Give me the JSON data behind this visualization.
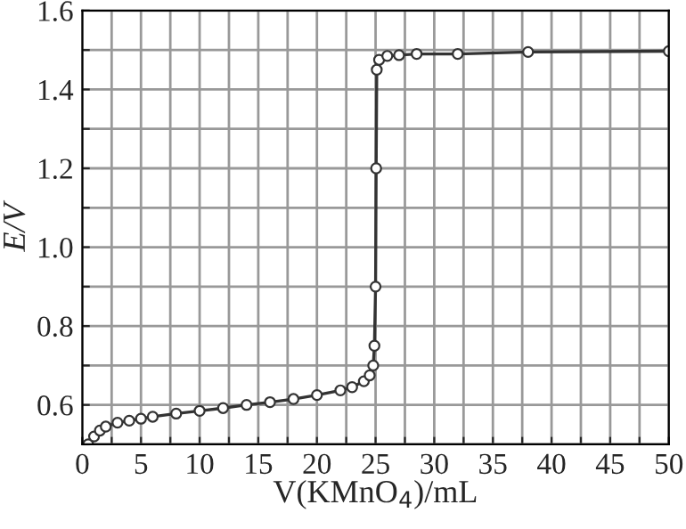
{
  "chart_data": {
    "type": "line",
    "xlabel": "V(KMnO$_{4}$)/mL",
    "ylabel": "E/V",
    "x": [
      0.5,
      1,
      1.5,
      2,
      3,
      4,
      5,
      6,
      8,
      10,
      12,
      14,
      16,
      18,
      20,
      22,
      23,
      24,
      24.5,
      24.8,
      24.9,
      25,
      25.05,
      25.1,
      25.3,
      26,
      27,
      28.5,
      32,
      38,
      50
    ],
    "series": [
      {
        "color": "#333333",
        "values": [
          0.5,
          0.52,
          0.535,
          0.545,
          0.555,
          0.56,
          0.565,
          0.57,
          0.578,
          0.585,
          0.592,
          0.6,
          0.607,
          0.615,
          0.625,
          0.637,
          0.645,
          0.66,
          0.675,
          0.7,
          0.75,
          0.9,
          1.2,
          1.45,
          1.475,
          1.485,
          1.487,
          1.49,
          1.49,
          1.495,
          1.497
        ]
      }
    ],
    "xlim": [
      0,
      50
    ],
    "ylim": [
      0.5,
      1.6
    ],
    "xticks": [
      0,
      {
        "value": 2.5,
        "label": null
      },
      5,
      {
        "value": 7.5,
        "label": null
      },
      10,
      {
        "value": 12.5,
        "label": null
      },
      15,
      {
        "value": 17.5,
        "label": null
      },
      20,
      {
        "value": 22.5,
        "label": null
      },
      25,
      {
        "value": 27.5,
        "label": null
      },
      30,
      {
        "value": 32.5,
        "label": null
      },
      35,
      {
        "value": 37.5,
        "label": null
      },
      40,
      {
        "value": 42.5,
        "label": null
      },
      45,
      {
        "value": 47.5,
        "label": null
      },
      50
    ],
    "yticks": [
      {
        "value": 0.5,
        "label": null
      },
      {
        "value": 0.6,
        "label": "0.6"
      },
      {
        "value": 0.7,
        "label": null
      },
      {
        "value": 0.8,
        "label": "0.8"
      },
      {
        "value": 0.9,
        "label": null
      },
      {
        "value": 1.0,
        "label": "1.0"
      },
      {
        "value": 1.1,
        "label": null
      },
      {
        "value": 1.2,
        "label": "1.2"
      },
      {
        "value": 1.3,
        "label": null
      },
      {
        "value": 1.4,
        "label": "1.4"
      },
      {
        "value": 1.5,
        "label": null
      },
      {
        "value": 1.6,
        "label": "1.6"
      }
    ],
    "grid": true,
    "marker": "circle",
    "line_style": "solid"
  }
}
